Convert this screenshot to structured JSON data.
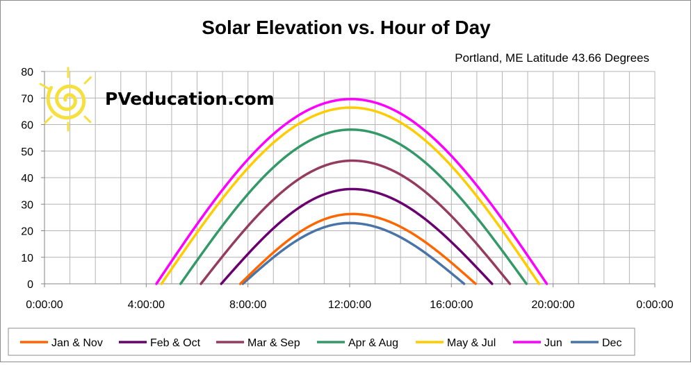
{
  "chart_data": {
    "type": "line",
    "title": "Solar Elevation vs. Hour of Day",
    "subtitle": "Portland, ME Latitude 43.66 Degrees",
    "watermark": "PVeducation.com",
    "watermark_icon": "sun-spiral-icon",
    "xlabel": "",
    "ylabel": "",
    "xlim": [
      0,
      24
    ],
    "ylim": [
      0,
      80
    ],
    "x_ticks": [
      0,
      4,
      8,
      12,
      16,
      20,
      24
    ],
    "x_tick_labels": [
      "0:00:00",
      "4:00:00",
      "8:00:00",
      "12:00:00",
      "16:00:00",
      "20:00:00",
      "0:00:00"
    ],
    "y_ticks": [
      0,
      10,
      20,
      30,
      40,
      50,
      60,
      70,
      80
    ],
    "y_tick_labels": [
      "0",
      "10",
      "20",
      "30",
      "40",
      "50",
      "60",
      "70",
      "80"
    ],
    "grid": true,
    "legend_position": "bottom",
    "series": [
      {
        "name": "Jan & Nov",
        "color": "#ff6600",
        "sunrise": 7.7,
        "sunset": 16.95,
        "peak_time": 12.1,
        "peak": 26.3
      },
      {
        "name": "Feb & Oct",
        "color": "#6a006f",
        "sunrise": 6.95,
        "sunset": 17.6,
        "peak_time": 12.1,
        "peak": 35.7
      },
      {
        "name": "Mar & Sep",
        "color": "#953b5e",
        "sunrise": 6.15,
        "sunset": 18.3,
        "peak_time": 12.1,
        "peak": 46.4
      },
      {
        "name": "Apr & Aug",
        "color": "#339966",
        "sunrise": 5.35,
        "sunset": 18.95,
        "peak_time": 12.05,
        "peak": 58.1
      },
      {
        "name": "May & Jul",
        "color": "#ffcc00",
        "sunrise": 4.6,
        "sunset": 19.45,
        "peak_time": 12.05,
        "peak": 66.4
      },
      {
        "name": "Jun",
        "color": "#ff00ff",
        "sunrise": 4.4,
        "sunset": 19.75,
        "peak_time": 12.05,
        "peak": 69.6
      },
      {
        "name": "Dec",
        "color": "#4a74a8",
        "sunrise": 7.8,
        "sunset": 16.5,
        "peak_time": 12.0,
        "peak": 22.9
      }
    ]
  }
}
